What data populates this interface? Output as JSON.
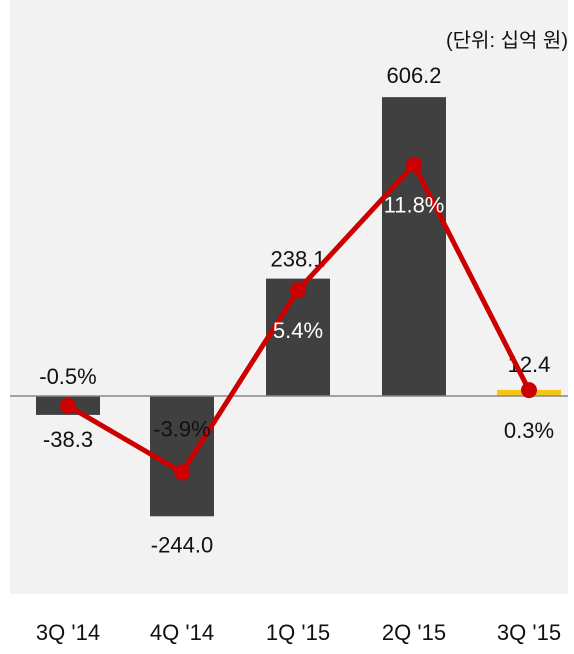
{
  "unit_label": "(단위: 십억 원)",
  "colors": {
    "bar": "#404040",
    "highlight_bar": "#f5c518",
    "line": "#cc0000",
    "background": "#f2f2f2",
    "axis": "#888888"
  },
  "chart_data": {
    "type": "bar",
    "categories": [
      "3Q '14",
      "4Q '14",
      "1Q '15",
      "2Q '15",
      "3Q '15"
    ],
    "series": [
      {
        "values": [
          -38.3,
          -244.0,
          238.1,
          606.2,
          12.4
        ],
        "labels": [
          "-38.3",
          "-244.0",
          "238.1",
          "606.2",
          "12.4"
        ]
      },
      {
        "type": "line",
        "values": [
          -0.5,
          -3.9,
          5.4,
          11.8,
          0.3
        ],
        "labels": [
          "-0.5%",
          "-3.9%",
          "5.4%",
          "11.8%",
          "0.3%"
        ]
      }
    ],
    "highlight_category": "3Q '15",
    "ylim": [
      -400,
      650
    ]
  }
}
